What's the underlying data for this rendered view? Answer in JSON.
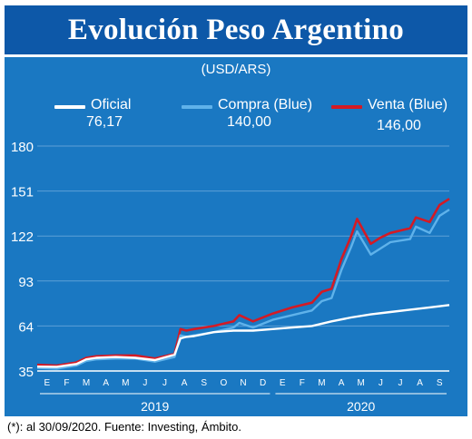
{
  "title": "Evolución Peso Argentino",
  "units": "(USD/ARS)",
  "legend": [
    {
      "label": "Oficial",
      "value": "76,17",
      "color": "#ffffff"
    },
    {
      "label": "Compra (Blue)",
      "value": "140,00",
      "color": "#5fb2ea"
    },
    {
      "label": "Venta (Blue)",
      "value": "146,00",
      "color": "#d41a24"
    }
  ],
  "footnote": "(*): al 30/09/2020. Fuente: Investing, Ámbito.",
  "chart_data": {
    "type": "line",
    "x_months": [
      "E",
      "F",
      "M",
      "A",
      "M",
      "J",
      "J",
      "A",
      "S",
      "O",
      "N",
      "D",
      "E",
      "F",
      "M",
      "A",
      "M",
      "J",
      "J",
      "A",
      "S"
    ],
    "years": [
      "2019",
      "2020"
    ],
    "ylim": [
      35,
      180
    ],
    "yticks": [
      35,
      64,
      93,
      122,
      151,
      180
    ],
    "grid": true,
    "series": [
      {
        "name": "Oficial",
        "color": "#ffffff",
        "x": [
          0,
          1,
          2,
          2.5,
          3,
          4,
          5,
          6,
          7,
          7.3,
          7.6,
          8,
          9,
          10,
          11,
          12,
          13,
          14,
          15,
          16,
          17,
          18,
          19,
          20,
          21
        ],
        "values": [
          37.8,
          37.7,
          39.5,
          42.5,
          43.5,
          44.0,
          43.5,
          42.0,
          45.5,
          56,
          57,
          57.5,
          60,
          61,
          61,
          62,
          63,
          64,
          67,
          69.5,
          71.5,
          73,
          74.5,
          76,
          77.5
        ]
      },
      {
        "name": "Compra (Blue)",
        "color": "#5fb2ea",
        "x": [
          0,
          1,
          2,
          2.5,
          3,
          4,
          5,
          6,
          7,
          7.3,
          7.6,
          8,
          9,
          10,
          10.3,
          11,
          12,
          13,
          14,
          14.5,
          15,
          15.5,
          16,
          16.3,
          17,
          17.5,
          18,
          19,
          19.3,
          20,
          20.5,
          21
        ],
        "values": [
          37,
          36.5,
          38.5,
          41.5,
          42.5,
          43,
          43,
          41,
          44,
          58,
          57,
          58,
          60,
          63,
          66,
          63,
          68,
          71,
          74,
          80,
          82,
          100,
          115,
          125,
          110,
          114,
          118,
          120,
          128,
          124,
          135,
          139
        ]
      },
      {
        "name": "Venta (Blue)",
        "color": "#d41a24",
        "x": [
          0,
          1,
          2,
          2.5,
          3,
          4,
          5,
          6,
          7,
          7.3,
          7.6,
          8,
          9,
          10,
          10.3,
          11,
          12,
          13,
          14,
          14.5,
          15,
          15.5,
          16,
          16.3,
          17,
          17.5,
          18,
          19,
          19.3,
          20,
          20.5,
          21
        ],
        "values": [
          39,
          38.5,
          40.5,
          43.5,
          44.5,
          45,
          45,
          43,
          46,
          62,
          61,
          62,
          64,
          67,
          71,
          67,
          72,
          76,
          79,
          86,
          88,
          107,
          122,
          133,
          117,
          121,
          124,
          127,
          134,
          131,
          142,
          146
        ]
      }
    ]
  }
}
